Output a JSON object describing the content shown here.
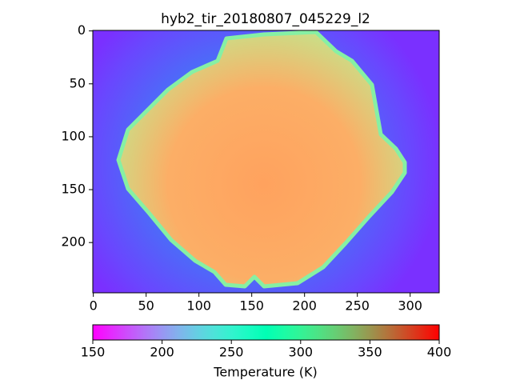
{
  "chart_data": {
    "type": "image",
    "title": "hyb2_tir_20180807_045229_l2",
    "xlim": [
      -0.5,
      327.5
    ],
    "ylim": [
      247.5,
      -0.5
    ],
    "xticks": [
      0,
      50,
      100,
      150,
      200,
      250,
      300
    ],
    "yticks": [
      0,
      50,
      100,
      150,
      200
    ],
    "colormap": "rainbow",
    "clim": [
      150,
      400
    ],
    "colorbar_ticks": [
      150,
      200,
      250,
      300,
      350,
      400
    ],
    "colorbar_label": "Temperature (K)"
  }
}
